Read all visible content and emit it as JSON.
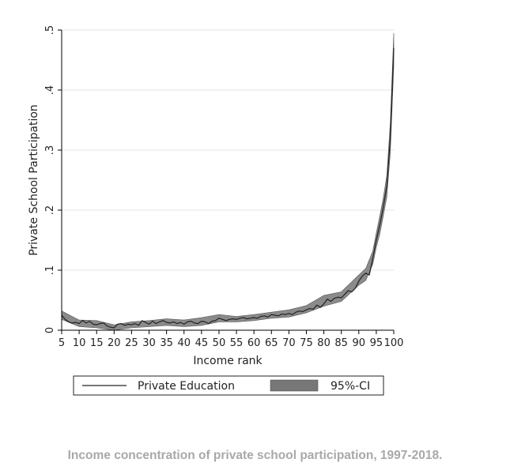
{
  "caption": "Income concentration of private school participation, 1997-2018.",
  "chart_data": {
    "type": "line",
    "title": "",
    "xlabel": "Income rank",
    "ylabel": "Private School Participation",
    "xlim": [
      5,
      100
    ],
    "ylim": [
      0,
      0.5
    ],
    "x_ticks": [
      5,
      10,
      15,
      20,
      25,
      30,
      35,
      40,
      45,
      50,
      55,
      60,
      65,
      70,
      75,
      80,
      85,
      90,
      95,
      100
    ],
    "x_tick_labels": [
      "5",
      "10",
      "15",
      "20",
      "25",
      "30",
      "35",
      "40",
      "45",
      "50",
      "55",
      "60",
      "65",
      "70",
      "75",
      "80",
      "85",
      "90",
      "95",
      "100"
    ],
    "y_ticks": [
      0,
      0.1,
      0.2,
      0.3,
      0.4,
      0.5
    ],
    "y_tick_labels": [
      "0",
      ".1",
      ".2",
      ".3",
      ".4",
      ".5"
    ],
    "grid": true,
    "legend_position": "bottom",
    "series": [
      {
        "name": "Private Education",
        "color": "#222222",
        "x": [
          5,
          6,
          7,
          8,
          9,
          10,
          11,
          12,
          13,
          14,
          15,
          16,
          17,
          18,
          19,
          20,
          21,
          22,
          23,
          24,
          25,
          26,
          27,
          28,
          29,
          30,
          31,
          32,
          33,
          34,
          35,
          36,
          37,
          38,
          39,
          40,
          41,
          42,
          43,
          44,
          45,
          46,
          47,
          48,
          49,
          50,
          51,
          52,
          53,
          54,
          55,
          56,
          57,
          58,
          59,
          60,
          61,
          62,
          63,
          64,
          65,
          66,
          67,
          68,
          69,
          70,
          71,
          72,
          73,
          74,
          75,
          76,
          77,
          78,
          79,
          80,
          81,
          82,
          83,
          84,
          85,
          86,
          87,
          88,
          89,
          90,
          91,
          92,
          93,
          94,
          95,
          96,
          97,
          98,
          99,
          100
        ],
        "values": [
          0.025,
          0.018,
          0.014,
          0.012,
          0.013,
          0.011,
          0.016,
          0.012,
          0.015,
          0.01,
          0.009,
          0.011,
          0.012,
          0.007,
          0.005,
          0.004,
          0.01,
          0.011,
          0.008,
          0.01,
          0.009,
          0.011,
          0.008,
          0.016,
          0.013,
          0.01,
          0.015,
          0.011,
          0.014,
          0.016,
          0.013,
          0.012,
          0.014,
          0.011,
          0.013,
          0.01,
          0.014,
          0.015,
          0.012,
          0.011,
          0.015,
          0.014,
          0.011,
          0.015,
          0.016,
          0.02,
          0.018,
          0.016,
          0.018,
          0.019,
          0.018,
          0.02,
          0.021,
          0.019,
          0.02,
          0.021,
          0.02,
          0.023,
          0.024,
          0.022,
          0.026,
          0.025,
          0.024,
          0.027,
          0.026,
          0.028,
          0.026,
          0.03,
          0.032,
          0.031,
          0.034,
          0.036,
          0.035,
          0.042,
          0.038,
          0.044,
          0.052,
          0.048,
          0.053,
          0.055,
          0.054,
          0.06,
          0.066,
          0.064,
          0.07,
          0.082,
          0.09,
          0.095,
          0.092,
          0.12,
          0.15,
          0.175,
          0.205,
          0.24,
          0.32,
          0.47
        ]
      },
      {
        "name": "95%-CI",
        "type": "area",
        "color": "#777777",
        "x": [
          5,
          10,
          15,
          20,
          25,
          30,
          35,
          40,
          45,
          50,
          55,
          60,
          65,
          70,
          75,
          80,
          85,
          90,
          92,
          94,
          95,
          96,
          97,
          98,
          99,
          100
        ],
        "lower": [
          0.018,
          0.006,
          0.004,
          0.0,
          0.004,
          0.006,
          0.008,
          0.006,
          0.008,
          0.014,
          0.014,
          0.016,
          0.02,
          0.022,
          0.029,
          0.04,
          0.048,
          0.075,
          0.083,
          0.11,
          0.138,
          0.16,
          0.19,
          0.222,
          0.295,
          0.44
        ],
        "upper": [
          0.032,
          0.017,
          0.016,
          0.009,
          0.014,
          0.016,
          0.019,
          0.017,
          0.021,
          0.026,
          0.023,
          0.026,
          0.03,
          0.034,
          0.041,
          0.058,
          0.064,
          0.092,
          0.103,
          0.132,
          0.162,
          0.19,
          0.22,
          0.258,
          0.345,
          0.495
        ]
      }
    ]
  }
}
